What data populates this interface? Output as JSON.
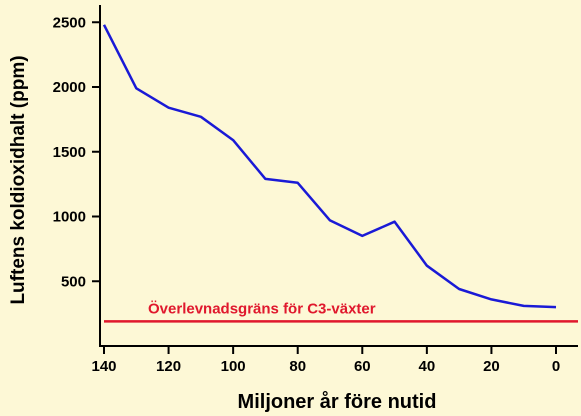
{
  "colors": {
    "background": "#fdf8d6",
    "series_line": "#1a1ad6",
    "threshold_line": "#e0182d",
    "axis": "#000000"
  },
  "chart_data": {
    "type": "line",
    "title": "",
    "xlabel": "Miljoner år före nutid",
    "ylabel": "Luftens koldioxidhalt  (ppm)",
    "x_reversed": true,
    "xlim": [
      140,
      0
    ],
    "ylim": [
      0,
      2600
    ],
    "xticks": [
      140,
      120,
      100,
      80,
      60,
      40,
      20,
      0
    ],
    "yticks": [
      500,
      1000,
      1500,
      2000,
      2500
    ],
    "grid": false,
    "series": [
      {
        "x": [
          140,
          130,
          120,
          110,
          100,
          90,
          80,
          70,
          60,
          50,
          40,
          30,
          20,
          10,
          0
        ],
        "y": [
          2480,
          1990,
          1840,
          1770,
          1590,
          1290,
          1260,
          970,
          850,
          960,
          620,
          440,
          360,
          310,
          300
        ]
      }
    ],
    "threshold": {
      "label": "Överlevnadsgräns för C3-växter",
      "y": 190
    }
  }
}
